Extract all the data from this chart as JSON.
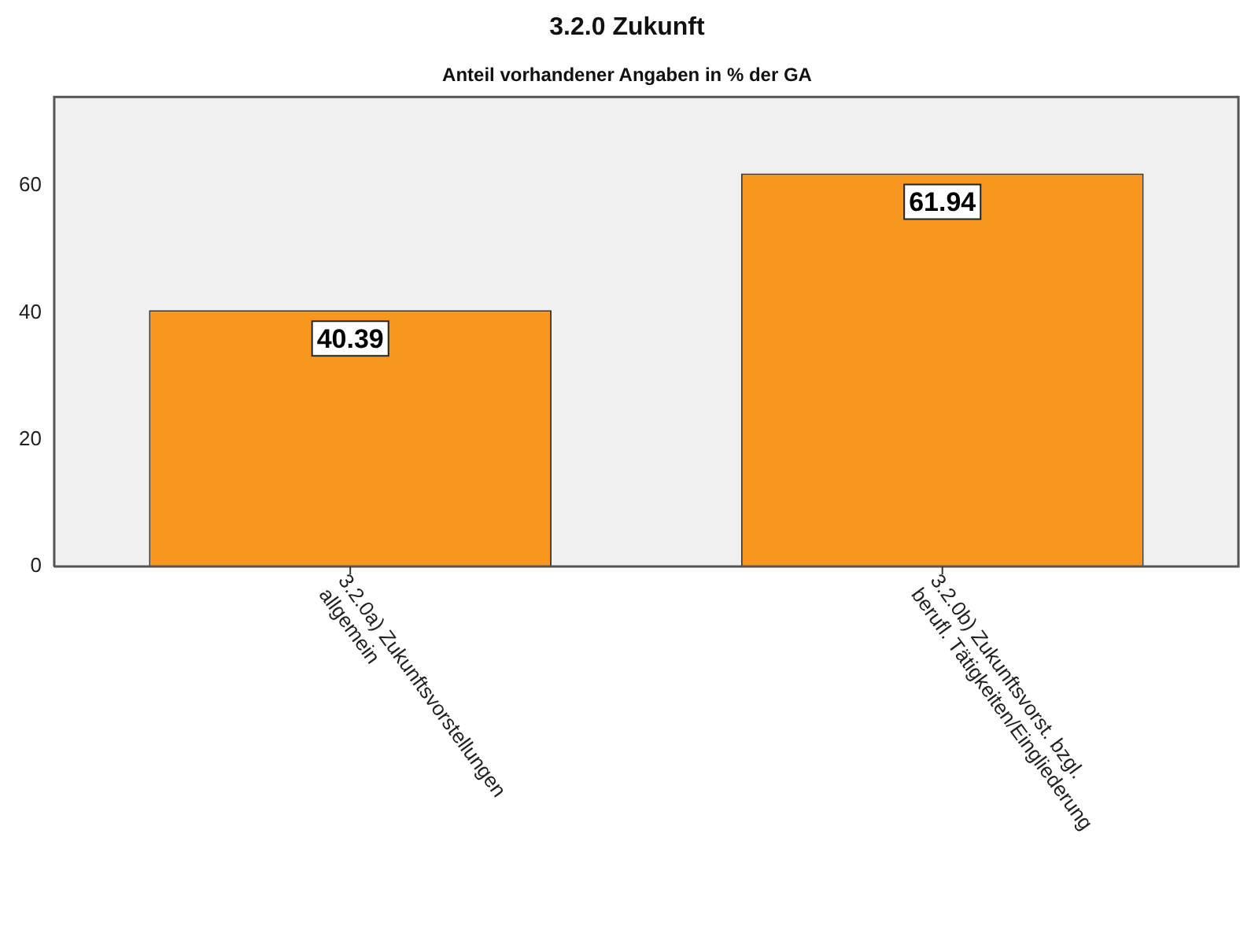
{
  "chart_data": {
    "type": "bar",
    "title": "3.2.0 Zukunft",
    "subtitle": "Anteil vorhandener Angaben in % der GA",
    "categories": [
      "3.2.0a) Zukunftsvorstellungen\nallgemein",
      "3.2.0b) Zukunftsvorst. bzgl.\nberufl. Tätigkeiten/Eingliederung"
    ],
    "values": [
      40.39,
      61.94
    ],
    "color": "#f7971e",
    "ylim": [
      0,
      74
    ],
    "yticks": [
      0,
      20,
      40,
      60
    ],
    "grid": false,
    "legend": false,
    "data_labels": true
  }
}
